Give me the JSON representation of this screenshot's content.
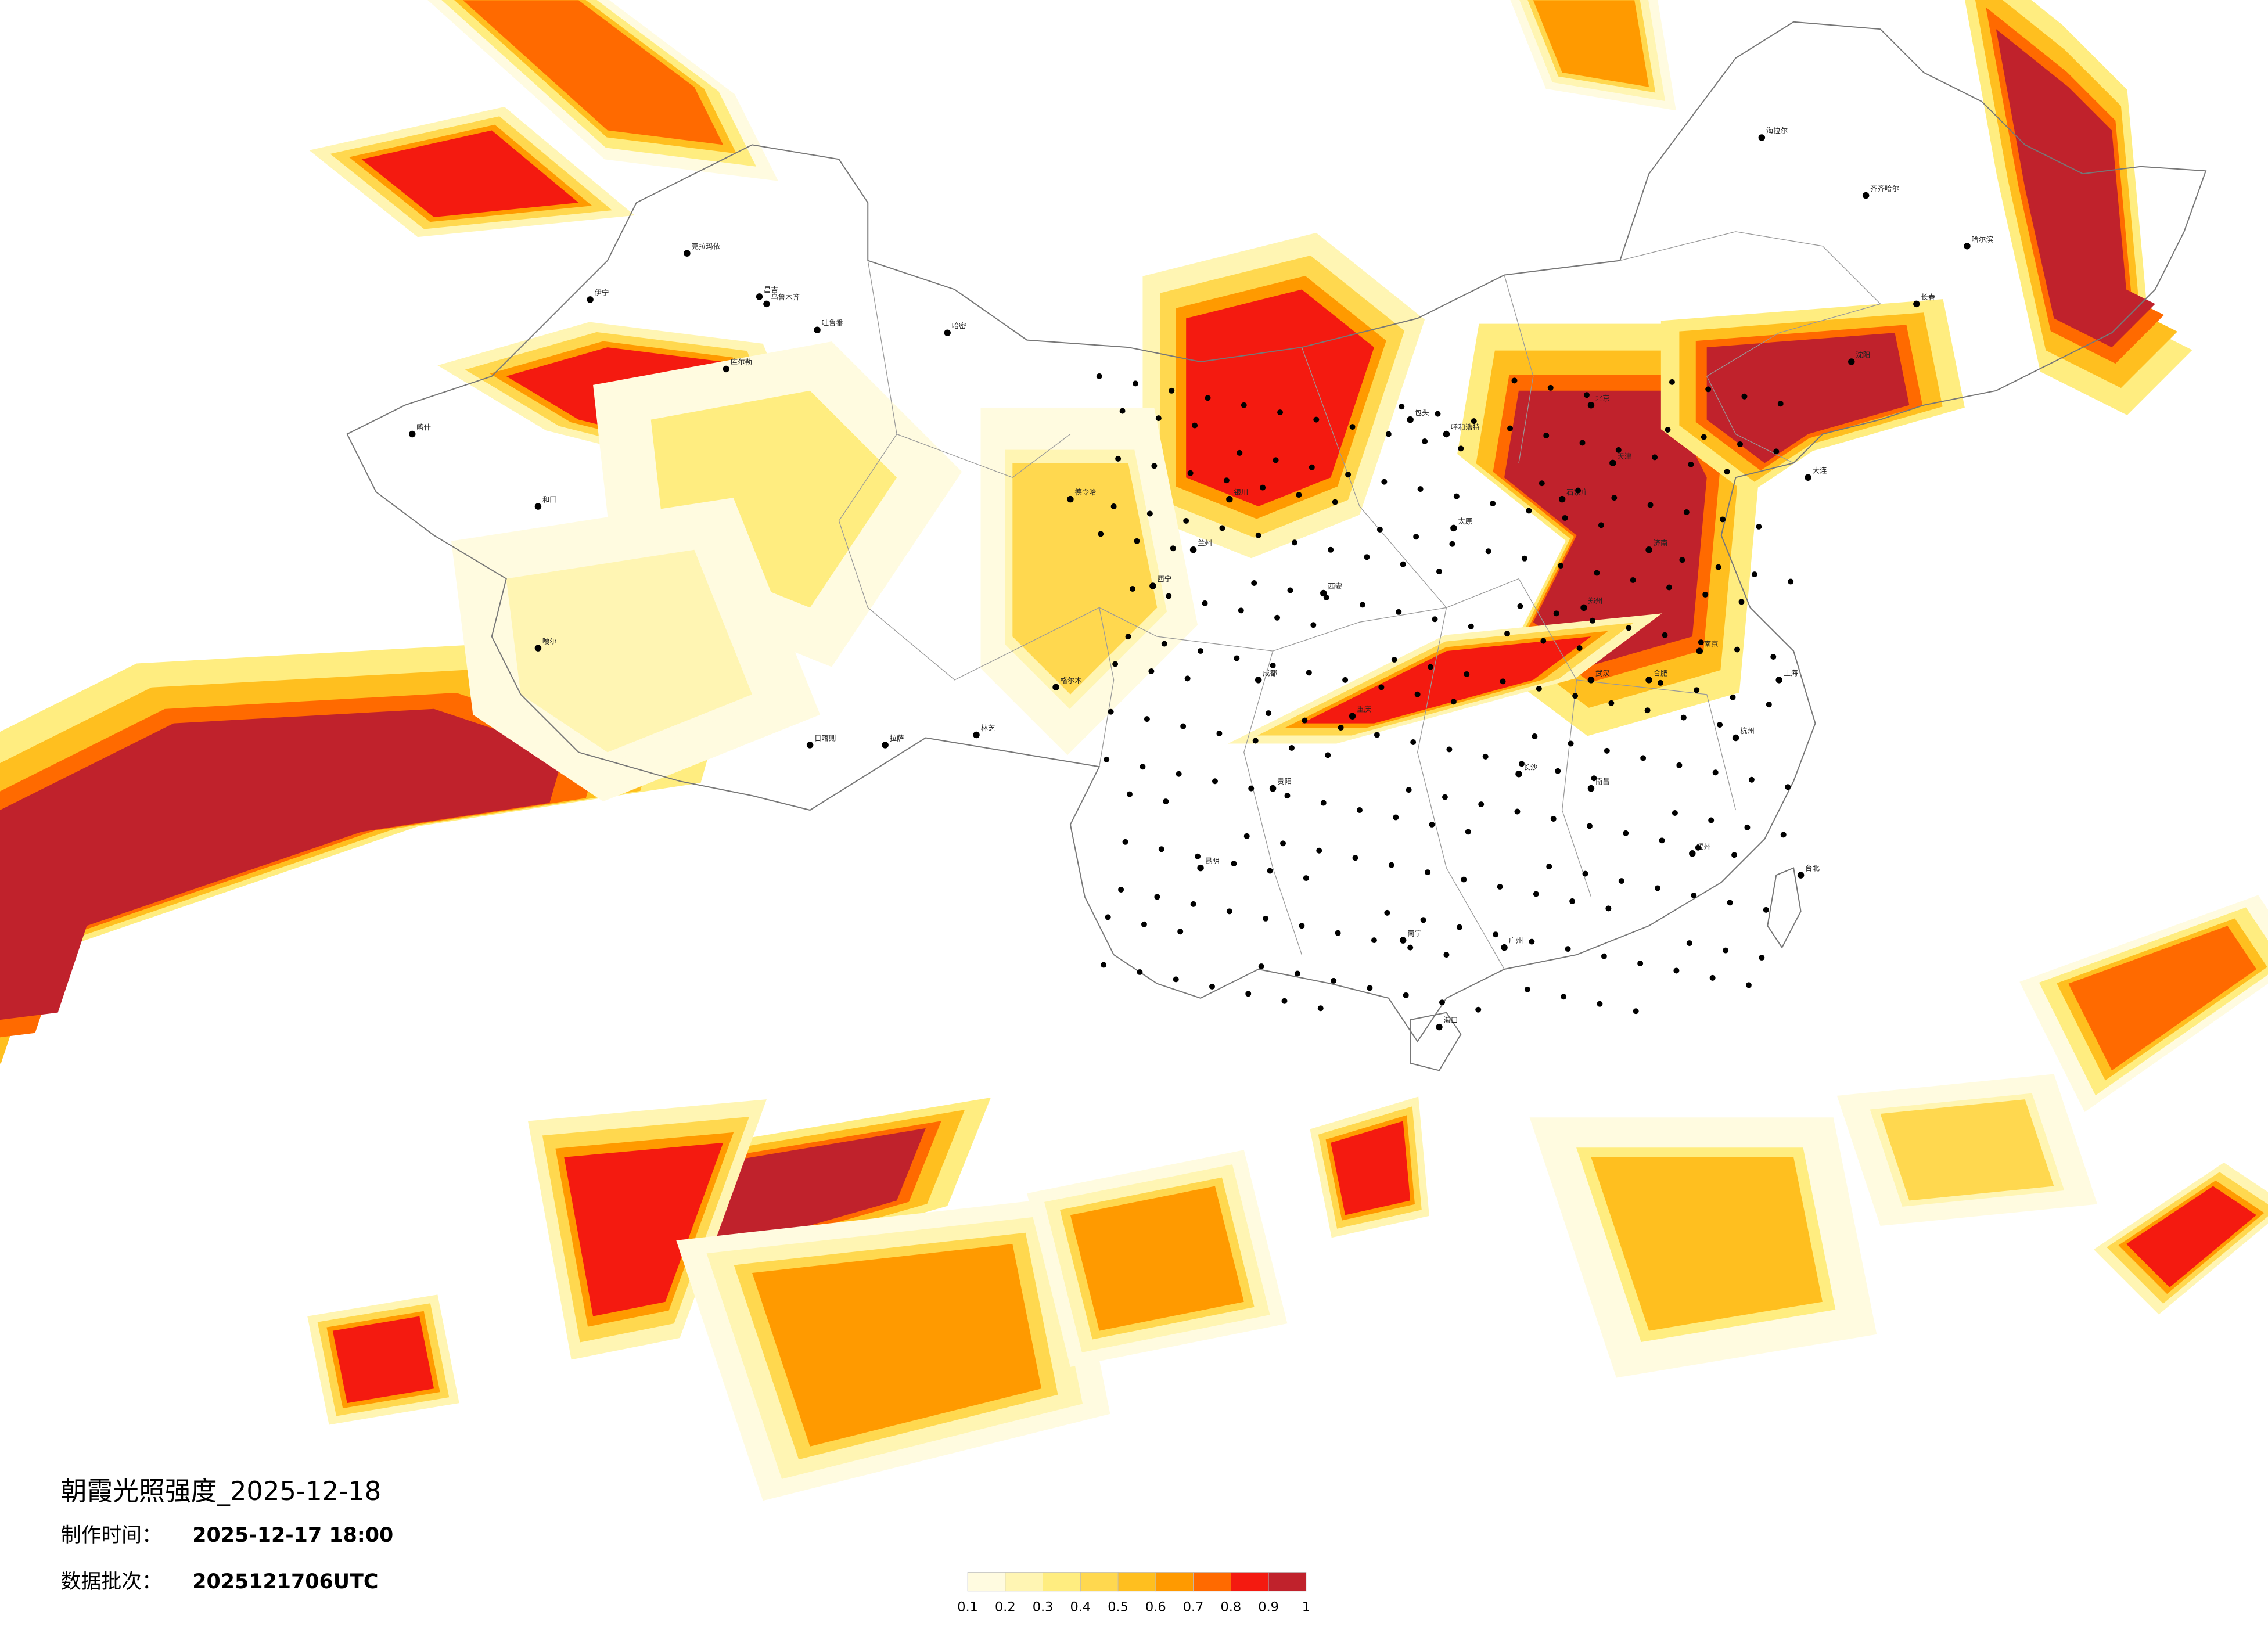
{
  "header": {
    "title": "朝霞光照强度_2025-12-18",
    "made_label": "制作时间：",
    "made_value": "2025-12-17 18:00",
    "batch_label": "数据批次：",
    "batch_value": "2025121706UTC"
  },
  "legend": {
    "ticks": [
      0.1,
      0.2,
      0.3,
      0.4,
      0.5,
      0.6,
      0.7,
      0.8,
      0.9,
      1
    ],
    "colors": [
      "#fffbe0",
      "#fff5b3",
      "#ffed80",
      "#ffd84f",
      "#ffbf1f",
      "#ff9a00",
      "#ff6a00",
      "#f41a10",
      "#c0222c"
    ]
  },
  "cities": [
    "克拉玛依",
    "伊宁",
    "昌吉",
    "乌鲁木齐",
    "吐鲁番",
    "哈密",
    "库尔勒",
    "喀什",
    "和田",
    "嘎尔",
    "日喀则",
    "拉萨",
    "林芝",
    "格尔木",
    "德令哈",
    "西宁",
    "兰州",
    "银川",
    "呼和浩特",
    "包头",
    "太原",
    "北京",
    "天津",
    "石家庄",
    "济南",
    "郑州",
    "西安",
    "成都",
    "重庆",
    "贵阳",
    "昆明",
    "南宁",
    "广州",
    "长沙",
    "武汉",
    "南京",
    "上海",
    "杭州",
    "福州",
    "台北",
    "海口",
    "沈阳",
    "长春",
    "哈尔滨",
    "齐齐哈尔",
    "海拉尔",
    "大连",
    "合肥",
    "南昌"
  ]
}
